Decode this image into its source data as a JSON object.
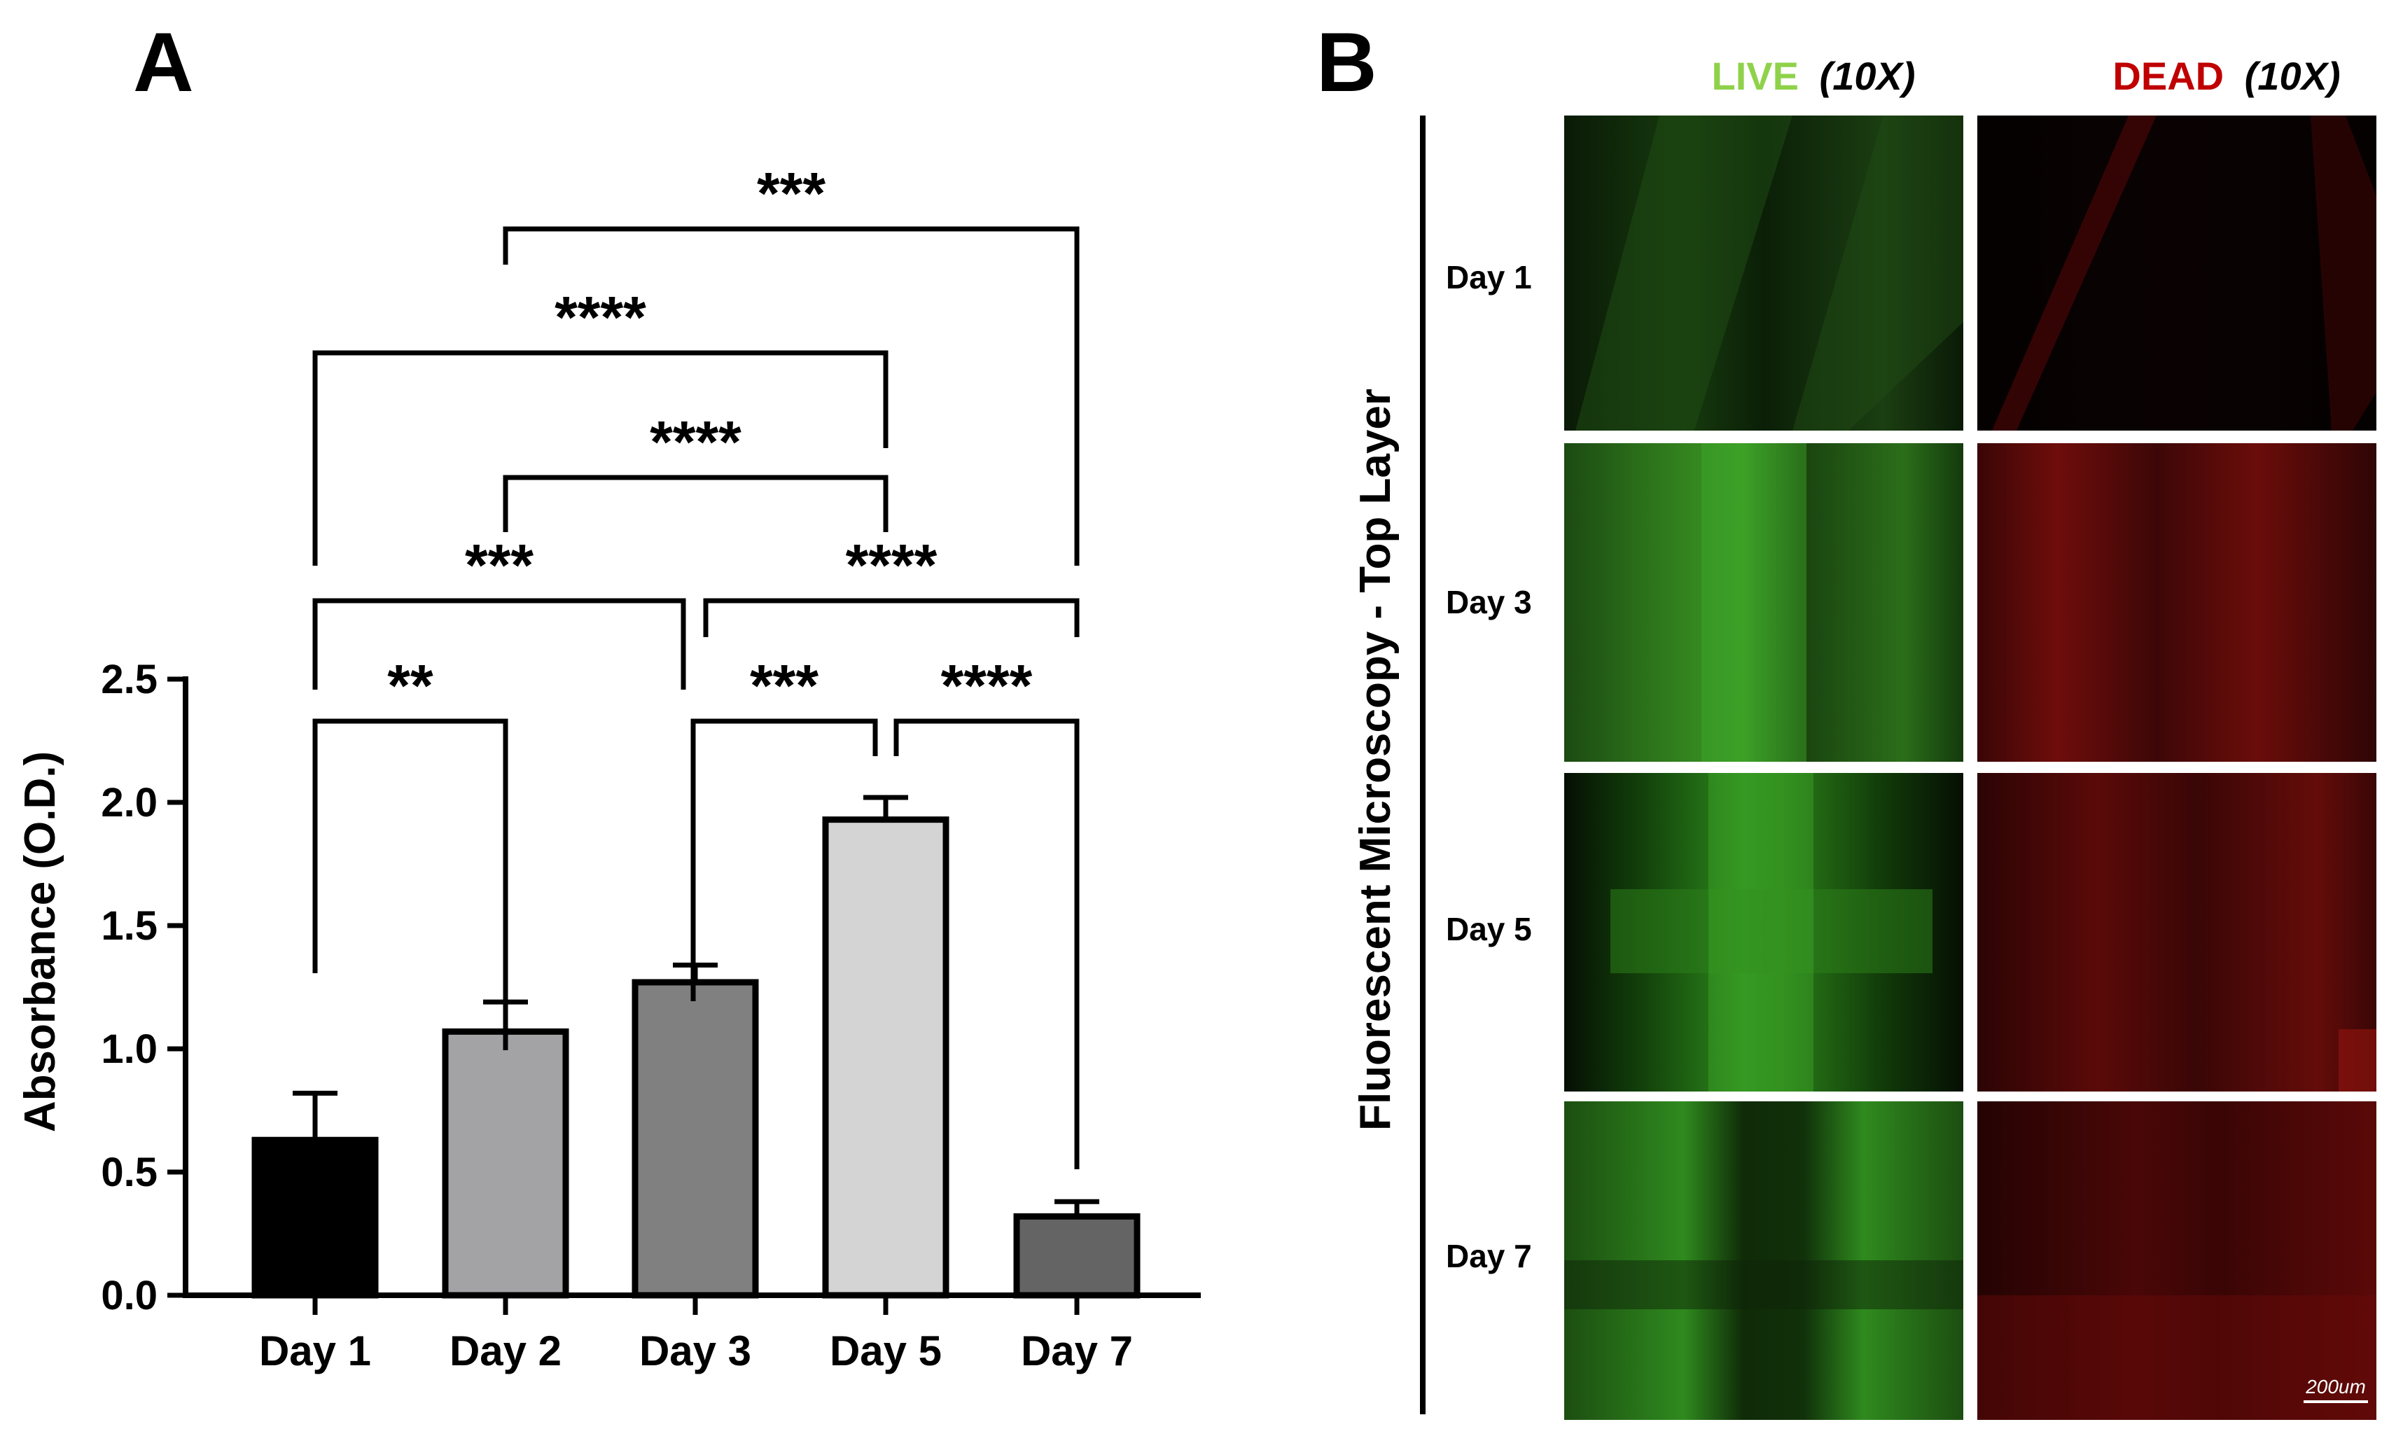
{
  "panel_a": {
    "label": "A",
    "chart_data": {
      "type": "bar",
      "categories": [
        "Day 1",
        "Day 2",
        "Day 3",
        "Day 5",
        "Day 7"
      ],
      "values": [
        0.63,
        1.07,
        1.27,
        1.93,
        0.32
      ],
      "errors": [
        0.19,
        0.12,
        0.07,
        0.09,
        0.06
      ],
      "bar_colors": [
        "#000000",
        "#a3a3a5",
        "#808080",
        "#d4d4d4",
        "#646464"
      ],
      "xlabel": "",
      "ylabel": "Absorbance (O.D.)",
      "ylim": [
        0,
        2.5
      ],
      "yticks": [
        "0.0",
        "0.5",
        "1.0",
        "1.5",
        "2.0",
        "2.5"
      ],
      "grid": false,
      "significance": [
        {
          "from": "Day 1",
          "to": "Day 2",
          "label": "**"
        },
        {
          "from": "Day 3",
          "to": "Day 5",
          "label": "***"
        },
        {
          "from": "Day 5",
          "to": "Day 7",
          "label": "****"
        },
        {
          "from": "Day 1",
          "to": "Day 3",
          "label": "***"
        },
        {
          "from": "Day 3",
          "to": "Day 7",
          "label": "****"
        },
        {
          "from": "Day 2",
          "to": "Day 5",
          "label": "****"
        },
        {
          "from": "Day 1",
          "to": "Day 5",
          "label": "****"
        },
        {
          "from": "Day 2",
          "to": "Day 7",
          "label": "***"
        }
      ]
    }
  },
  "panel_b": {
    "label": "B",
    "vertical_title": "Fluorescent Microscopy - Top Layer",
    "columns": [
      {
        "stain": "LIVE",
        "mag": "(10X)",
        "color": "#8fd24a"
      },
      {
        "stain": "DEAD",
        "mag": "(10X)",
        "color": "#c00000"
      }
    ],
    "rows": [
      "Day 1",
      "Day 3",
      "Day 5",
      "Day 7"
    ],
    "scale_bar": "200um"
  }
}
